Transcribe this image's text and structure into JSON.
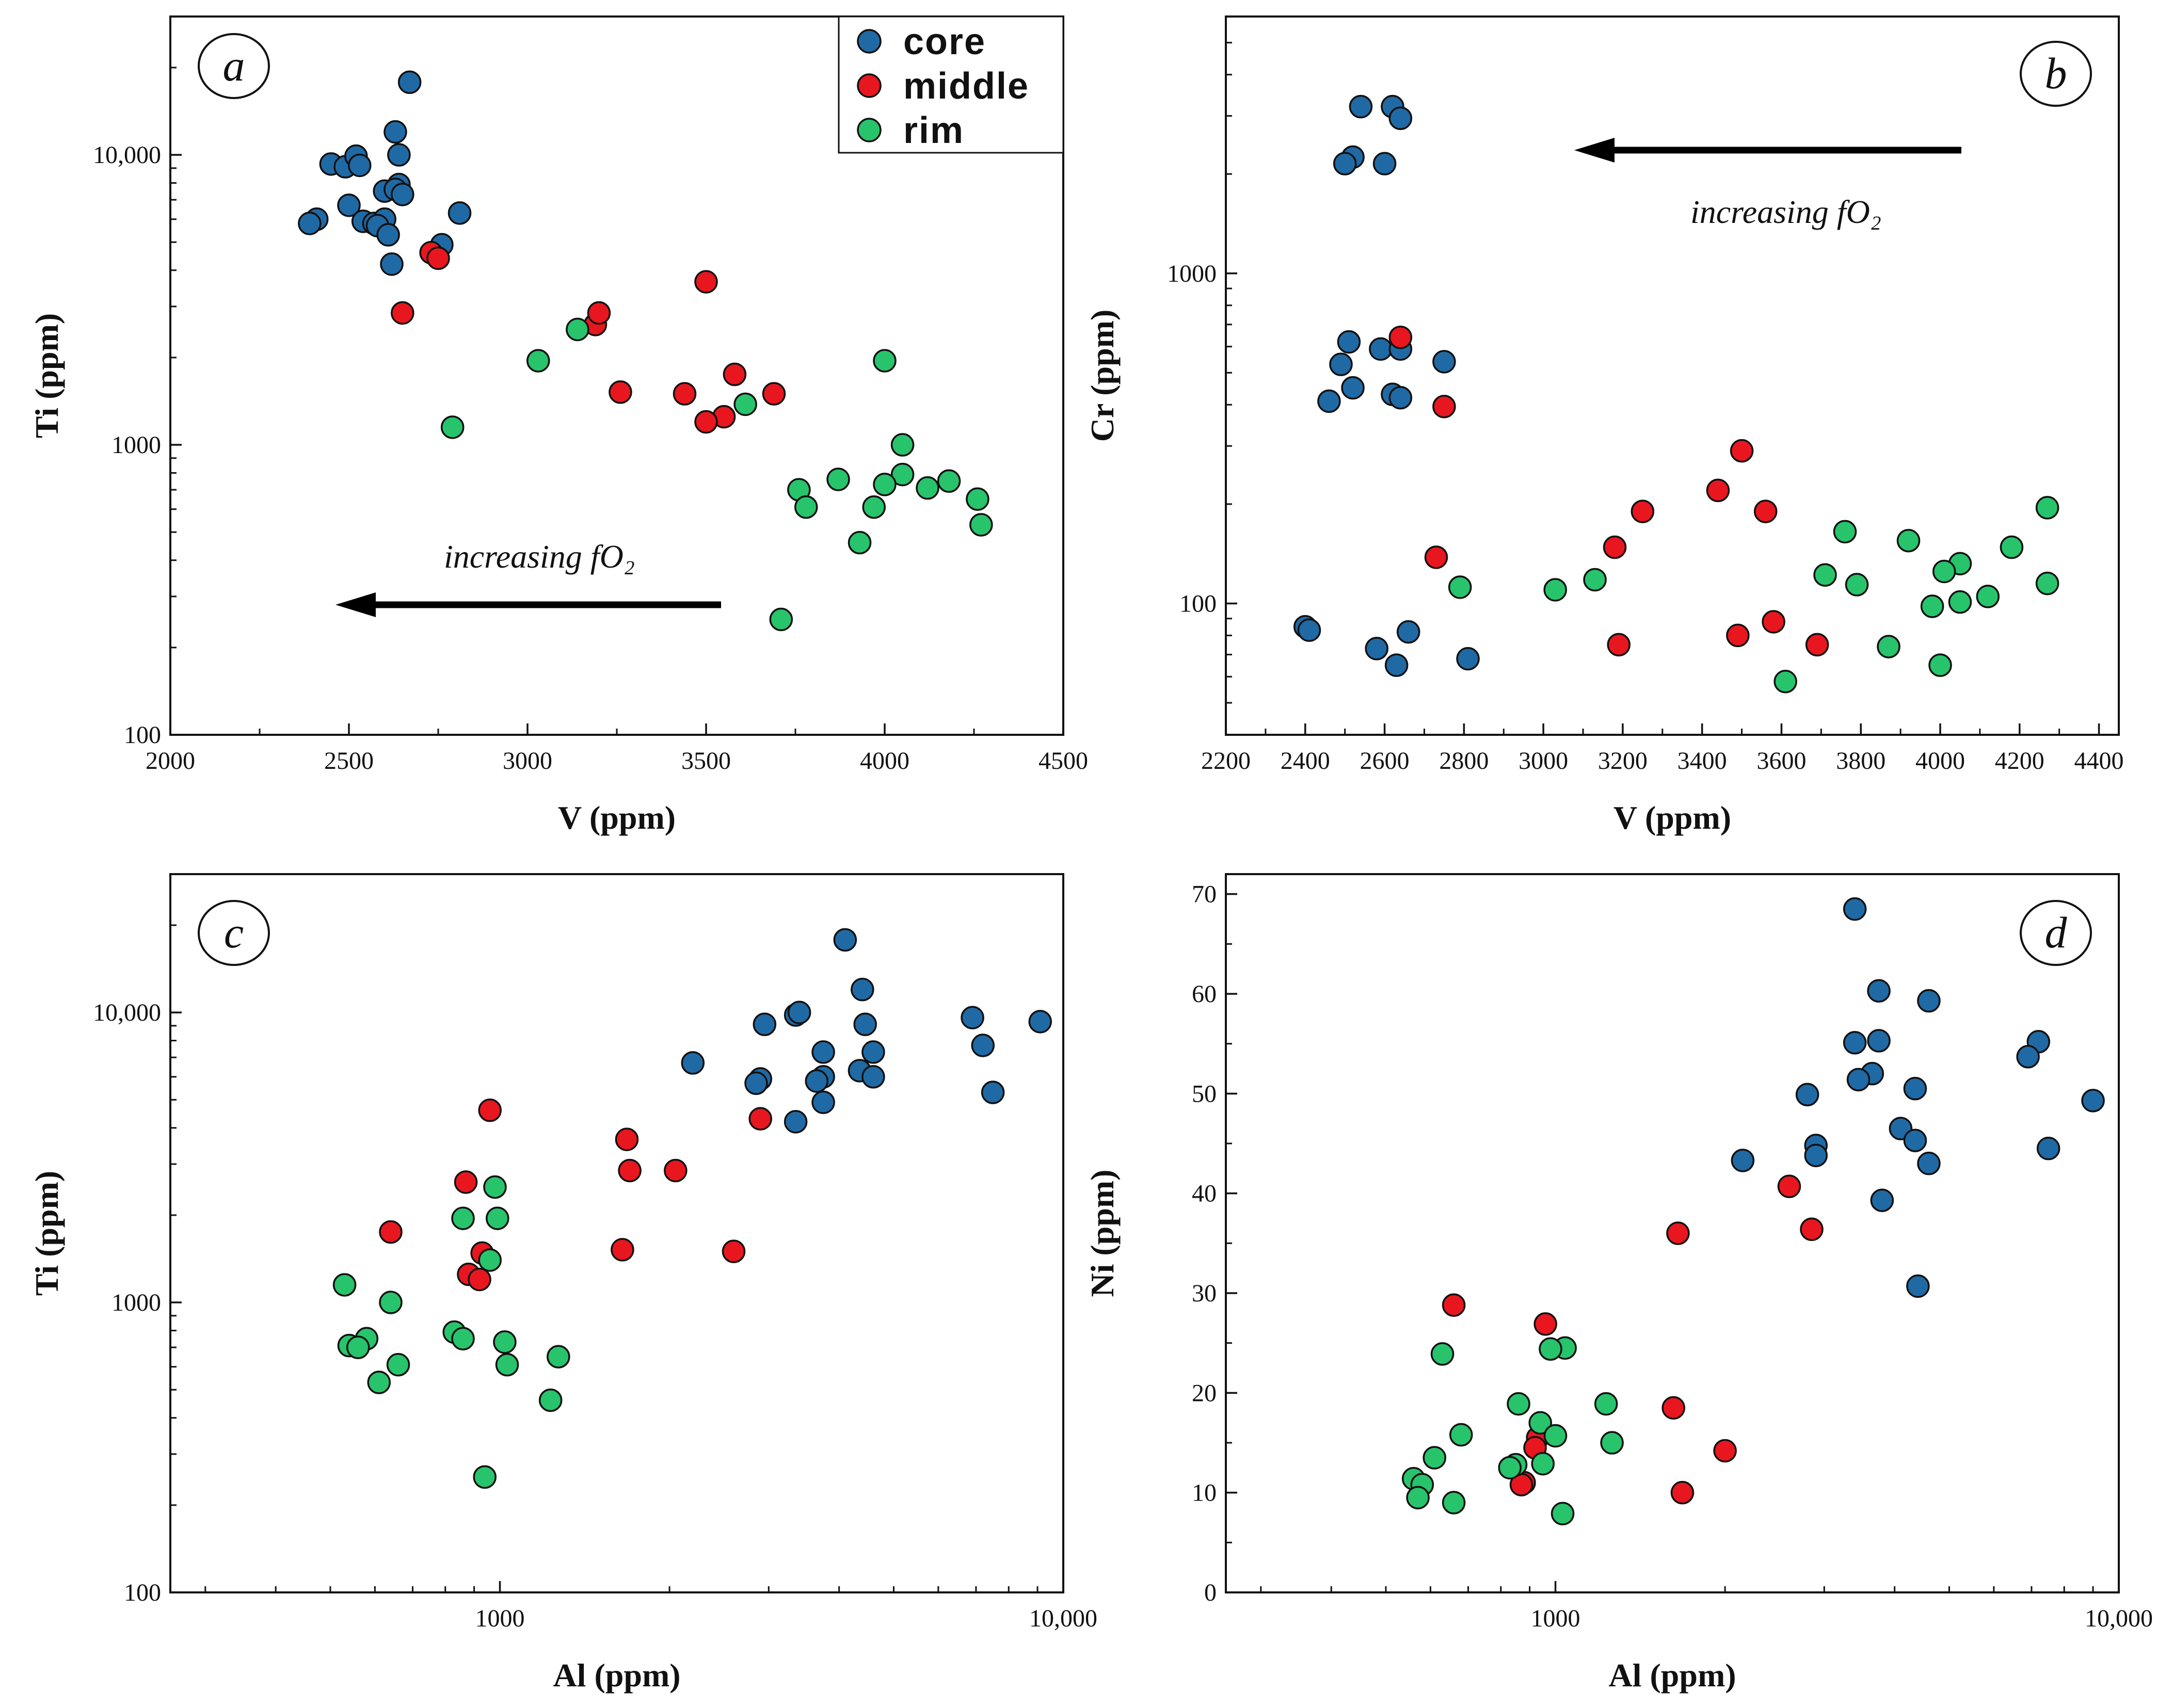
{
  "colors": {
    "core": "#1f6aa5",
    "middle": "#e8171f",
    "rim": "#27c46c"
  },
  "legend": [
    {
      "key": "core",
      "label": "core"
    },
    {
      "key": "middle",
      "label": "middle"
    },
    {
      "key": "rim",
      "label": "rim"
    }
  ],
  "chart_data": [
    {
      "id": "a",
      "type": "scatter",
      "letter": "a",
      "xlabel": "V (ppm)",
      "ylabel": "Ti (ppm)",
      "xscale": "linear",
      "yscale": "log",
      "xlim": [
        2000,
        4500
      ],
      "ylim": [
        100,
        30000
      ],
      "xticks": [
        {
          "v": 2000,
          "label": "2000"
        },
        {
          "v": 2500,
          "label": "2500"
        },
        {
          "v": 3000,
          "label": "3000"
        },
        {
          "v": 3500,
          "label": "3500"
        },
        {
          "v": 4000,
          "label": "4000"
        },
        {
          "v": 4500,
          "label": "4500"
        }
      ],
      "yticks": [
        {
          "v": 100,
          "label": "100"
        },
        {
          "v": 1000,
          "label": "1000"
        },
        {
          "v": 10000,
          "label": "10,000"
        }
      ],
      "annotation": {
        "text": "increasing fO₂",
        "placement": "lower-middle",
        "arrow": "left"
      },
      "series": [
        {
          "name": "core",
          "points": [
            [
              2670,
              17800
            ],
            [
              2630,
              12000
            ],
            [
              2450,
              9300
            ],
            [
              2490,
              9100
            ],
            [
              2520,
              9900
            ],
            [
              2530,
              9200
            ],
            [
              2640,
              10000
            ],
            [
              2640,
              7900
            ],
            [
              2600,
              7500
            ],
            [
              2630,
              7600
            ],
            [
              2650,
              7300
            ],
            [
              2500,
              6700
            ],
            [
              2810,
              6300
            ],
            [
              2410,
              6000
            ],
            [
              2390,
              5800
            ],
            [
              2540,
              5900
            ],
            [
              2570,
              5800
            ],
            [
              2600,
              6000
            ],
            [
              2580,
              5700
            ],
            [
              2610,
              5300
            ],
            [
              2760,
              4900
            ],
            [
              2620,
              4200
            ]
          ]
        },
        {
          "name": "middle",
          "points": [
            [
              2730,
              4600
            ],
            [
              2750,
              4400
            ],
            [
              2650,
              2850
            ],
            [
              3190,
              2600
            ],
            [
              3200,
              2850
            ],
            [
              3500,
              3650
            ],
            [
              3580,
              1750
            ],
            [
              3690,
              1500
            ],
            [
              3260,
              1520
            ],
            [
              3440,
              1500
            ],
            [
              3550,
              1250
            ],
            [
              3500,
              1200
            ]
          ]
        },
        {
          "name": "rim",
          "points": [
            [
              2790,
              1150
            ],
            [
              3030,
              1950
            ],
            [
              3140,
              2500
            ],
            [
              3610,
              1380
            ],
            [
              4000,
              1950
            ],
            [
              4050,
              1000
            ],
            [
              4050,
              790
            ],
            [
              3870,
              760
            ],
            [
              3760,
              700
            ],
            [
              3780,
              610
            ],
            [
              4000,
              730
            ],
            [
              3970,
              610
            ],
            [
              4120,
              710
            ],
            [
              4180,
              750
            ],
            [
              4260,
              650
            ],
            [
              4270,
              530
            ],
            [
              3930,
              460
            ],
            [
              3710,
              250
            ]
          ]
        }
      ]
    },
    {
      "id": "b",
      "type": "scatter",
      "letter": "b",
      "xlabel": "V (ppm)",
      "ylabel": "Cr (ppm)",
      "xscale": "linear",
      "yscale": "log",
      "xlim": [
        2200,
        4450
      ],
      "ylim": [
        40,
        6000
      ],
      "xticks": [
        {
          "v": 2200,
          "label": "2200"
        },
        {
          "v": 2400,
          "label": "2400"
        },
        {
          "v": 2600,
          "label": "2600"
        },
        {
          "v": 2800,
          "label": "2800"
        },
        {
          "v": 3000,
          "label": "3000"
        },
        {
          "v": 3200,
          "label": "3200"
        },
        {
          "v": 3400,
          "label": "3400"
        },
        {
          "v": 3600,
          "label": "3600"
        },
        {
          "v": 3800,
          "label": "3800"
        },
        {
          "v": 4000,
          "label": "4000"
        },
        {
          "v": 4200,
          "label": "4200"
        },
        {
          "v": 4400,
          "label": "4400"
        }
      ],
      "yticks": [
        {
          "v": 100,
          "label": "100"
        },
        {
          "v": 1000,
          "label": "1000"
        }
      ],
      "annotation": {
        "text": "increasing fO₂",
        "placement": "upper-right",
        "arrow": "left"
      },
      "series": [
        {
          "name": "core",
          "points": [
            [
              2540,
              3200
            ],
            [
              2620,
              3200
            ],
            [
              2640,
              2950
            ],
            [
              2520,
              2250
            ],
            [
              2500,
              2150
            ],
            [
              2600,
              2150
            ],
            [
              2510,
              620
            ],
            [
              2490,
              530
            ],
            [
              2590,
              590
            ],
            [
              2640,
              590
            ],
            [
              2750,
              540
            ],
            [
              2520,
              450
            ],
            [
              2620,
              430
            ],
            [
              2640,
              420
            ],
            [
              2460,
              410
            ],
            [
              2400,
              85
            ],
            [
              2410,
              83
            ],
            [
              2660,
              82
            ],
            [
              2580,
              73
            ],
            [
              2630,
              65
            ],
            [
              2810,
              68
            ]
          ]
        },
        {
          "name": "middle",
          "points": [
            [
              2640,
              640
            ],
            [
              2750,
              395
            ],
            [
              3500,
              290
            ],
            [
              3440,
              220
            ],
            [
              3250,
              190
            ],
            [
              3560,
              190
            ],
            [
              3180,
              148
            ],
            [
              2730,
              138
            ],
            [
              3580,
              88
            ],
            [
              3490,
              80
            ],
            [
              3190,
              75
            ],
            [
              3690,
              75
            ]
          ]
        },
        {
          "name": "rim",
          "points": [
            [
              4270,
              195
            ],
            [
              3760,
              165
            ],
            [
              3920,
              155
            ],
            [
              4180,
              148
            ],
            [
              4050,
              132
            ],
            [
              4010,
              125
            ],
            [
              3710,
              122
            ],
            [
              3130,
              118
            ],
            [
              4270,
              115
            ],
            [
              3790,
              114
            ],
            [
              2790,
              112
            ],
            [
              3030,
              110
            ],
            [
              4120,
              105
            ],
            [
              4050,
              101
            ],
            [
              3980,
              98
            ],
            [
              3870,
              74
            ],
            [
              4000,
              65
            ],
            [
              3610,
              58
            ]
          ]
        }
      ]
    },
    {
      "id": "c",
      "type": "scatter",
      "letter": "c",
      "xlabel": "Al (ppm)",
      "ylabel": "Ti (ppm)",
      "xscale": "log",
      "yscale": "log",
      "xlim": [
        260,
        10000
      ],
      "ylim": [
        100,
        30000
      ],
      "xticks": [
        {
          "v": 1000,
          "label": "1000"
        },
        {
          "v": 10000,
          "label": "10,000"
        }
      ],
      "yticks": [
        {
          "v": 100,
          "label": "100"
        },
        {
          "v": 1000,
          "label": "1000"
        },
        {
          "v": 10000,
          "label": "10,000"
        }
      ],
      "series": [
        {
          "name": "core",
          "points": [
            [
              4100,
              17800
            ],
            [
              4400,
              12000
            ],
            [
              3350,
              9800
            ],
            [
              3400,
              10000
            ],
            [
              6900,
              9600
            ],
            [
              4450,
              9100
            ],
            [
              2950,
              9100
            ],
            [
              9100,
              9300
            ],
            [
              7200,
              7700
            ],
            [
              3750,
              7300
            ],
            [
              4600,
              7300
            ],
            [
              2200,
              6700
            ],
            [
              4350,
              6300
            ],
            [
              4600,
              6000
            ],
            [
              3750,
              6000
            ],
            [
              2900,
              5900
            ],
            [
              2850,
              5700
            ],
            [
              3650,
              5800
            ],
            [
              7500,
              5300
            ],
            [
              3750,
              4900
            ],
            [
              3350,
              4200
            ]
          ]
        },
        {
          "name": "middle",
          "points": [
            [
              960,
              4600
            ],
            [
              2900,
              4300
            ],
            [
              1680,
              3650
            ],
            [
              1700,
              2850
            ],
            [
              2050,
              2850
            ],
            [
              870,
              2600
            ],
            [
              930,
              1480
            ],
            [
              880,
              1250
            ],
            [
              920,
              1200
            ],
            [
              1650,
              1520
            ],
            [
              2600,
              1500
            ],
            [
              640,
              1750
            ]
          ]
        },
        {
          "name": "rim",
          "points": [
            [
              980,
              2500
            ],
            [
              860,
              1950
            ],
            [
              990,
              1950
            ],
            [
              960,
              1400
            ],
            [
              530,
              1150
            ],
            [
              640,
              1000
            ],
            [
              830,
              790
            ],
            [
              580,
              750
            ],
            [
              540,
              710
            ],
            [
              560,
              700
            ],
            [
              860,
              750
            ],
            [
              1020,
              730
            ],
            [
              1270,
              650
            ],
            [
              660,
              610
            ],
            [
              1030,
              610
            ],
            [
              610,
              530
            ],
            [
              1230,
              460
            ],
            [
              940,
              250
            ]
          ]
        }
      ]
    },
    {
      "id": "d",
      "type": "scatter",
      "letter": "d",
      "xlabel": "Al (ppm)",
      "ylabel": "Ni (ppm)",
      "xscale": "log",
      "yscale": "linear",
      "xlim": [
        260,
        10000
      ],
      "ylim": [
        0,
        72
      ],
      "xticks": [
        {
          "v": 1000,
          "label": "1000"
        },
        {
          "v": 10000,
          "label": "10,000"
        }
      ],
      "yticks": [
        {
          "v": 0,
          "label": "0"
        },
        {
          "v": 10,
          "label": "10"
        },
        {
          "v": 20,
          "label": "20"
        },
        {
          "v": 30,
          "label": "30"
        },
        {
          "v": 40,
          "label": "40"
        },
        {
          "v": 50,
          "label": "50"
        },
        {
          "v": 60,
          "label": "60"
        },
        {
          "v": 70,
          "label": "70"
        }
      ],
      "series": [
        {
          "name": "core",
          "points": [
            [
              3400,
              68.5
            ],
            [
              3750,
              60.3
            ],
            [
              4600,
              59.3
            ],
            [
              7200,
              55.2
            ],
            [
              3400,
              55.1
            ],
            [
              3750,
              55.3
            ],
            [
              6900,
              53.7
            ],
            [
              3650,
              52
            ],
            [
              3450,
              51.4
            ],
            [
              4350,
              50.5
            ],
            [
              2800,
              49.9
            ],
            [
              9000,
              49.3
            ],
            [
              4100,
              46.5
            ],
            [
              4350,
              45.3
            ],
            [
              2900,
              44.8
            ],
            [
              7500,
              44.5
            ],
            [
              2900,
              43.8
            ],
            [
              2150,
              43.3
            ],
            [
              4600,
              43
            ],
            [
              3800,
              39.3
            ],
            [
              4400,
              30.7
            ]
          ]
        },
        {
          "name": "middle",
          "points": [
            [
              2600,
              40.7
            ],
            [
              2850,
              36.4
            ],
            [
              1650,
              36
            ],
            [
              660,
              28.8
            ],
            [
              960,
              26.9
            ],
            [
              1620,
              18.5
            ],
            [
              930,
              15.5
            ],
            [
              920,
              14.5
            ],
            [
              2000,
              14.2
            ],
            [
              880,
              11
            ],
            [
              870,
              10.8
            ],
            [
              1680,
              10
            ]
          ]
        },
        {
          "name": "rim",
          "points": [
            [
              1040,
              24.5
            ],
            [
              980,
              24.4
            ],
            [
              630,
              23.9
            ],
            [
              1230,
              18.9
            ],
            [
              860,
              18.9
            ],
            [
              940,
              17
            ],
            [
              1000,
              15.7
            ],
            [
              680,
              15.8
            ],
            [
              1260,
              15
            ],
            [
              610,
              13.5
            ],
            [
              850,
              12.8
            ],
            [
              830,
              12.5
            ],
            [
              950,
              12.9
            ],
            [
              560,
              11.4
            ],
            [
              580,
              10.8
            ],
            [
              570,
              9.5
            ],
            [
              660,
              9
            ],
            [
              1030,
              7.9
            ]
          ]
        }
      ]
    }
  ]
}
